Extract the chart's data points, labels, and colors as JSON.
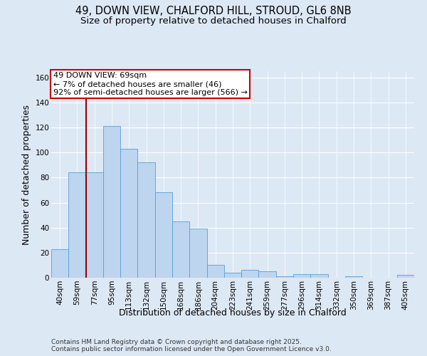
{
  "title1": "49, DOWN VIEW, CHALFORD HILL, STROUD, GL6 8NB",
  "title2": "Size of property relative to detached houses in Chalford",
  "xlabel": "Distribution of detached houses by size in Chalford",
  "ylabel": "Number of detached properties",
  "footer1": "Contains HM Land Registry data © Crown copyright and database right 2025.",
  "footer2": "Contains public sector information licensed under the Open Government Licence v3.0.",
  "annotation_title": "49 DOWN VIEW: 69sqm",
  "annotation_line1": "← 7% of detached houses are smaller (46)",
  "annotation_line2": "92% of semi-detached houses are larger (566) →",
  "bar_labels": [
    "40sqm",
    "59sqm",
    "77sqm",
    "95sqm",
    "113sqm",
    "132sqm",
    "150sqm",
    "168sqm",
    "186sqm",
    "204sqm",
    "223sqm",
    "241sqm",
    "259sqm",
    "277sqm",
    "296sqm",
    "314sqm",
    "332sqm",
    "350sqm",
    "369sqm",
    "387sqm",
    "405sqm"
  ],
  "bar_values": [
    23,
    84,
    84,
    121,
    103,
    92,
    68,
    45,
    39,
    10,
    4,
    6,
    5,
    1,
    3,
    3,
    0,
    1,
    0,
    0,
    2
  ],
  "bar_color": "#bdd5ee",
  "bar_edge_color": "#5a9fd4",
  "reference_line_x": 1.5,
  "reference_line_color": "#990000",
  "ylim": [
    0,
    165
  ],
  "yticks": [
    0,
    20,
    40,
    60,
    80,
    100,
    120,
    140,
    160
  ],
  "bg_color": "#dde8f5",
  "plot_bg_color": "#dde8f5",
  "grid_color": "#ffffff",
  "annotation_box_color": "#ffffff",
  "annotation_box_edge": "#cc0000",
  "title_fontsize": 10.5,
  "subtitle_fontsize": 9.5,
  "axis_label_fontsize": 9,
  "tick_fontsize": 7.5,
  "annotation_fontsize": 8,
  "footer_fontsize": 6.5
}
